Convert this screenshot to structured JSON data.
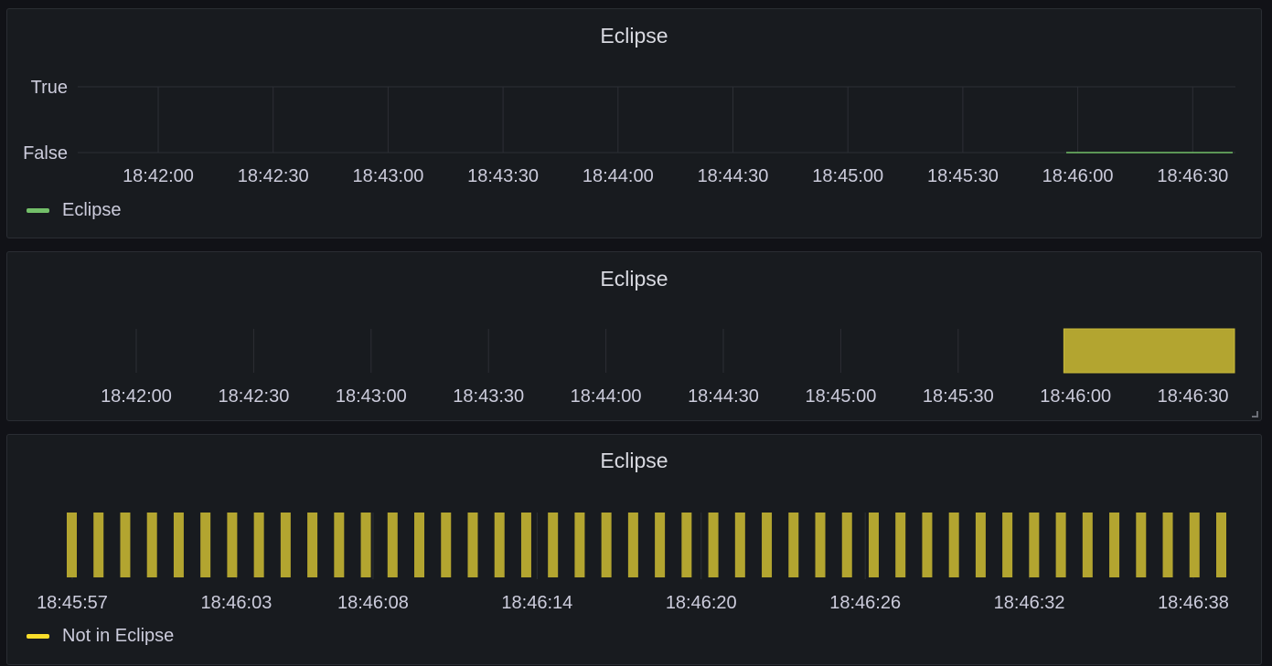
{
  "panels": [
    {
      "title": "Eclipse",
      "legend": "Eclipse"
    },
    {
      "title": "Eclipse"
    },
    {
      "title": "Eclipse",
      "legend": "Not in Eclipse"
    }
  ],
  "colors": {
    "green": "#73bf69",
    "yellow": "#b3a530",
    "legend_yellow": "#fade2a"
  },
  "chart_data": [
    {
      "type": "line",
      "title": "Eclipse",
      "y_tick_labels": [
        "True",
        "False"
      ],
      "x_tick_labels": [
        "18:42:00",
        "18:42:30",
        "18:43:00",
        "18:43:30",
        "18:44:00",
        "18:44:30",
        "18:45:00",
        "18:45:30",
        "18:46:00",
        "18:46:30"
      ],
      "series": [
        {
          "name": "Eclipse",
          "x": [
            "18:45:57",
            "18:46:41"
          ],
          "y": [
            "False",
            "False"
          ]
        }
      ]
    },
    {
      "type": "bar",
      "title": "Eclipse",
      "x_tick_labels": [
        "18:42:00",
        "18:42:30",
        "18:43:00",
        "18:43:30",
        "18:44:00",
        "18:44:30",
        "18:45:00",
        "18:45:30",
        "18:46:00",
        "18:46:30"
      ],
      "segments": [
        {
          "start": "18:45:57",
          "end": "18:46:41"
        }
      ]
    },
    {
      "type": "bar",
      "title": "Eclipse",
      "x_tick_labels": [
        "18:45:57",
        "18:46:03",
        "18:46:08",
        "18:46:14",
        "18:46:20",
        "18:46:26",
        "18:46:32",
        "18:46:38"
      ],
      "series": [
        {
          "name": "Not in Eclipse",
          "bar_count": 44
        }
      ]
    }
  ]
}
